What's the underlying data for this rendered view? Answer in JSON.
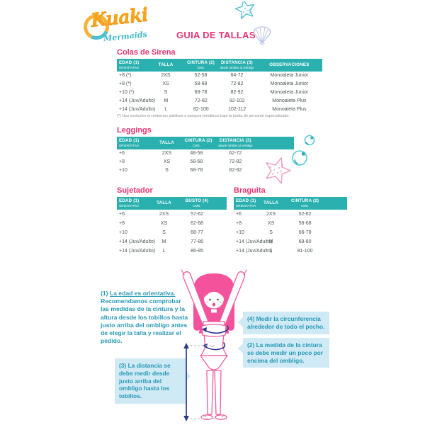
{
  "brand": {
    "name": "Kuaki",
    "subname": "Mermaids"
  },
  "page_title": "GUIA DE TALLAS",
  "colors": {
    "table_header_teal": "#2ab1af",
    "title_pink": "#e93372",
    "note_teal": "#2798b5",
    "note_box_bg": "#cfeaf5",
    "measure_arrow_navy": "#2b3990",
    "figure_pink": "#ef5d9e"
  },
  "icons": {
    "top_right": "starfish-icon",
    "beside_title": "seashell-icon",
    "mid_right_1": "bubbles-icon",
    "mid_right_2": "starfish-icon",
    "bottom": "vertical-measure-arrow-icon"
  },
  "tables": {
    "colas": {
      "title": "Colas de Sirena",
      "headers": [
        {
          "label": "EDAD (1)",
          "sub": "ORIENTATIVA"
        },
        {
          "label": "TALLA",
          "sub": ""
        },
        {
          "label": "CINTURA (2)",
          "sub": "CMS."
        },
        {
          "label": "DISTANCIA (3)",
          "sub": "desde tobillos al ombligo"
        },
        {
          "label": "OBSERVACIONES",
          "sub": ""
        }
      ],
      "rows": [
        [
          "+8  (*)",
          "2XS",
          "52-58",
          "64-72",
          "Monoaleta Junior"
        ],
        [
          "+8  (*)",
          "XS",
          "58-68",
          "72-82",
          "Monoaleta Junior"
        ],
        [
          "+10 (*)",
          "S",
          "68-78",
          "82-92",
          "Monoaleta Junior"
        ],
        [
          "+14 (Juv/Adulto)",
          "M",
          "72-82",
          "92-102",
          "Monoaleta Plus"
        ],
        [
          "+14 (Juv/Adulto)",
          "L",
          "82-100",
          "102-112",
          "Monoaleta Plus"
        ]
      ],
      "footnote": "(*) Uso exclusivo en entornos públicos o parques temáticos bajo la tutela de personal especializado."
    },
    "leggings": {
      "title": "Leggings",
      "headers": [
        {
          "label": "EDAD (1)",
          "sub": "ORIENTATIVA"
        },
        {
          "label": "TALLA",
          "sub": ""
        },
        {
          "label": "CINTURA (2)",
          "sub": "CMS."
        },
        {
          "label": "DISTANCIA (3)",
          "sub": "desde tobillos al ombligo"
        }
      ],
      "rows": [
        [
          "+6",
          "2XS",
          "48-58",
          "62-72"
        ],
        [
          "+8",
          "XS",
          "58-68",
          "72-82"
        ],
        [
          "+10",
          "S",
          "68-78",
          "82-92"
        ]
      ]
    },
    "sujetador": {
      "title": "Sujetador",
      "headers": [
        {
          "label": "EDAD (1)",
          "sub": "ORIENTATIVA"
        },
        {
          "label": "TALLA",
          "sub": ""
        },
        {
          "label": "BUSTO (4)",
          "sub": "CMS."
        }
      ],
      "rows": [
        [
          "+6",
          "2XS",
          "57-62"
        ],
        [
          "+8",
          "XS",
          "62-68"
        ],
        [
          "+10",
          "S",
          "68-77"
        ],
        [
          "+14 (Juv/Adulto)",
          "M",
          "77-86"
        ],
        [
          "+14 (Juv/Adulto)",
          "L",
          "86-95"
        ]
      ]
    },
    "braguita": {
      "title": "Braguita",
      "headers": [
        {
          "label": "EDAD (1)",
          "sub": "ORIENTATIVA"
        },
        {
          "label": "TALLA",
          "sub": ""
        },
        {
          "label": "CINTURA (2)",
          "sub": "CMS."
        }
      ],
      "rows": [
        [
          "+6",
          "2XS",
          "52-62"
        ],
        [
          "+8",
          "XS",
          "58-68"
        ],
        [
          "+10",
          "S",
          "66-78"
        ],
        [
          "+14 (Juv/Adulto)",
          "M",
          "68-80"
        ],
        [
          "+14 (Juv/Adulto)",
          "L",
          "81-100"
        ]
      ]
    }
  },
  "notes": {
    "note1_num": "(1) ",
    "note1_underlined": "La edad es orientativa.",
    "note1_rest": " Recomendamos comprobar las medidas de la cintura y la altura desde los tobillos hasta justo arriba del ombligo antes de elegir la talla y realizar el pedido.",
    "note3": "(3) La distancia se debe medir desde justo arriba del ombligo hasta los tobillos.",
    "note4": "(4) Medir la circunferencia alrededor de todo el pecho.",
    "note2": "(2) La medida de la cintura se debe medir un poco por encima del ombligo."
  }
}
